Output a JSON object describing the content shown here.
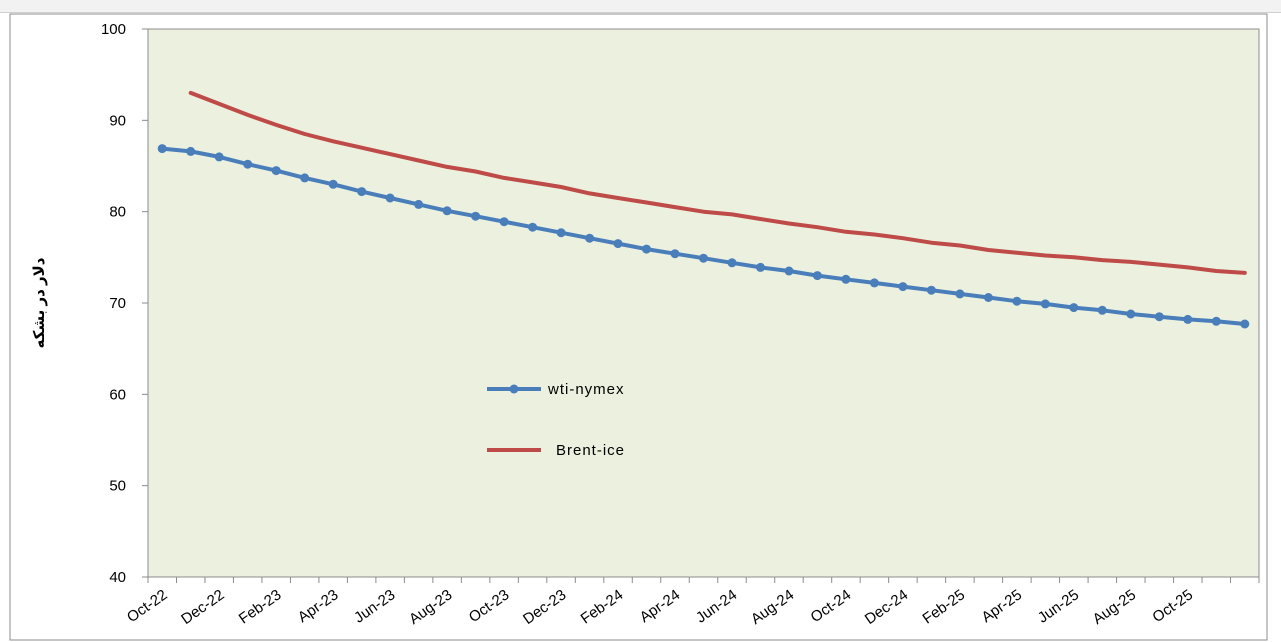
{
  "header": {
    "caption": ""
  },
  "chart_data": {
    "type": "line",
    "title": "",
    "xlabel": "",
    "ylabel": "دلار در بشکه",
    "ylim": [
      40,
      100
    ],
    "yticks": [
      40,
      50,
      60,
      70,
      80,
      90,
      100
    ],
    "grid": false,
    "legend_position": "center-left",
    "x": [
      "Oct-22",
      "Nov-22",
      "Dec-22",
      "Jan-23",
      "Feb-23",
      "Mar-23",
      "Apr-23",
      "May-23",
      "Jun-23",
      "Jul-23",
      "Aug-23",
      "Sep-23",
      "Oct-23",
      "Nov-23",
      "Dec-23",
      "Jan-24",
      "Feb-24",
      "Mar-24",
      "Apr-24",
      "May-24",
      "Jun-24",
      "Jul-24",
      "Aug-24",
      "Sep-24",
      "Oct-24",
      "Nov-24",
      "Dec-24",
      "Jan-25",
      "Feb-25",
      "Mar-25",
      "Apr-25",
      "May-25",
      "Jun-25",
      "Jul-25",
      "Aug-25",
      "Sep-25",
      "Oct-25",
      "Nov-25",
      "Dec-25"
    ],
    "x_tick_labels": [
      "Oct-22",
      "Dec-22",
      "Feb-23",
      "Apr-23",
      "Jun-23",
      "Aug-23",
      "Oct-23",
      "Dec-23",
      "Feb-24",
      "Apr-24",
      "Jun-24",
      "Aug-24",
      "Oct-24",
      "Dec-24",
      "Feb-25",
      "Apr-25",
      "Jun-25",
      "Aug-25",
      "Oct-25"
    ],
    "series": [
      {
        "name": "wti-nymex",
        "color": "#4a7ebb",
        "marker": "circle",
        "values": [
          86.9,
          86.6,
          86.0,
          85.2,
          84.5,
          83.7,
          83.0,
          82.2,
          81.5,
          80.8,
          80.1,
          79.5,
          78.9,
          78.3,
          77.7,
          77.1,
          76.5,
          75.9,
          75.4,
          74.9,
          74.4,
          73.9,
          73.5,
          73.0,
          72.6,
          72.2,
          71.8,
          71.4,
          71.0,
          70.6,
          70.2,
          69.9,
          69.5,
          69.2,
          68.8,
          68.5,
          68.2,
          68.0,
          67.7
        ]
      },
      {
        "name": "Brent-ice",
        "color": "#be4b48",
        "marker": "none",
        "values": [
          null,
          93.0,
          91.8,
          90.6,
          89.5,
          88.5,
          87.7,
          87.0,
          86.3,
          85.6,
          84.9,
          84.4,
          83.7,
          83.2,
          82.7,
          82.0,
          81.5,
          81.0,
          80.5,
          80.0,
          79.7,
          79.2,
          78.7,
          78.3,
          77.8,
          77.5,
          77.1,
          76.6,
          76.3,
          75.8,
          75.5,
          75.2,
          75.0,
          74.7,
          74.5,
          74.2,
          73.9,
          73.5,
          73.3
        ]
      }
    ]
  }
}
